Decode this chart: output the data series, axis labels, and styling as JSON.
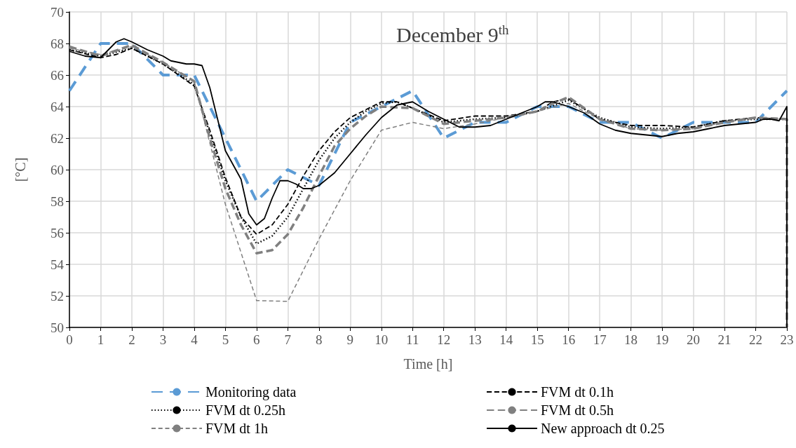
{
  "chart_data": {
    "type": "line",
    "title": "December 9$^{th}$",
    "xlabel": "Time [h]",
    "ylabel": "[°C]",
    "xlim": [
      0,
      23
    ],
    "xticks": [
      0,
      1,
      2,
      3,
      4,
      5,
      6,
      7,
      8,
      9,
      10,
      11,
      12,
      13,
      14,
      15,
      16,
      17,
      18,
      19,
      20,
      21,
      22,
      23
    ],
    "ylim": [
      50,
      70
    ],
    "yticks": [
      50,
      52,
      54,
      56,
      58,
      60,
      62,
      64,
      66,
      68,
      70
    ],
    "grid": true,
    "legend": "bottom",
    "marker": "none",
    "series": [
      {
        "name": "Monitoring data",
        "color": "#5b9bd5",
        "line_style": "dashed",
        "x": [
          0,
          1,
          2,
          3,
          4,
          5,
          6,
          7,
          8,
          9,
          10,
          11,
          12,
          13,
          14,
          15,
          16,
          17,
          18,
          19,
          20,
          21,
          22,
          23
        ],
        "values": [
          65,
          68,
          68,
          66,
          66,
          62,
          58,
          60,
          59,
          63,
          64,
          65,
          62,
          63,
          63,
          64,
          64,
          63,
          63,
          62,
          63,
          63,
          63,
          65
        ]
      },
      {
        "name": "FVM dt 0.1h",
        "color": "#000000",
        "line_style": "dashed",
        "x": [
          0,
          1,
          1.5,
          2,
          3,
          4,
          4.5,
          5,
          5.5,
          6,
          6.5,
          7,
          7.5,
          8,
          8.5,
          9,
          9.5,
          10,
          10.5,
          11,
          12,
          13,
          14,
          15,
          15.5,
          16,
          17,
          18,
          19,
          20,
          21,
          22,
          23
        ],
        "values": [
          67.6,
          67.1,
          67.3,
          67.7,
          66.7,
          65.3,
          62.5,
          59.5,
          57,
          55.9,
          56.5,
          57.8,
          59.6,
          61.2,
          62.4,
          63.3,
          63.8,
          64.3,
          64.3,
          63.9,
          63.1,
          63.4,
          63.4,
          63.7,
          64.3,
          64.5,
          63.2,
          62.8,
          62.8,
          62.7,
          63.1,
          63.3,
          63.2
        ]
      },
      {
        "name": "FVM dt 0.25h",
        "color": "#000000",
        "line_style": "dotted",
        "x": [
          0,
          1,
          2,
          3,
          4,
          4.5,
          5,
          5.5,
          6,
          6.5,
          7,
          7.5,
          8,
          8.5,
          9,
          9.5,
          10,
          10.5,
          11,
          12,
          13,
          14,
          15,
          16,
          17,
          18,
          19,
          20,
          21,
          22,
          23
        ],
        "values": [
          67.6,
          67.2,
          67.7,
          66.7,
          65.4,
          62.3,
          59.3,
          57,
          55.3,
          55.8,
          57,
          58.8,
          60.6,
          62,
          63,
          63.7,
          64.2,
          64.3,
          63.9,
          63,
          63.2,
          63.3,
          63.7,
          64.4,
          63.3,
          62.7,
          62.6,
          62.7,
          63.1,
          63.2,
          63.2
        ]
      },
      {
        "name": "FVM dt 0.5h",
        "color": "#808080",
        "line_style": "dashed",
        "x": [
          0,
          1,
          2,
          3,
          4,
          4.5,
          5,
          5.5,
          6,
          6.5,
          7,
          7.5,
          8,
          8.5,
          9,
          9.5,
          10,
          11,
          12,
          13,
          14,
          15,
          15.5,
          16,
          17,
          18,
          19,
          20,
          21,
          22,
          23,
          23
        ],
        "values": [
          67.8,
          67.2,
          67.9,
          66.8,
          65.6,
          62,
          58.8,
          56.5,
          54.7,
          54.9,
          55.9,
          57.6,
          59.6,
          61.5,
          62.6,
          63.4,
          64,
          63.9,
          62.9,
          63.1,
          63.3,
          63.7,
          64.2,
          64.6,
          63.2,
          62.6,
          62.5,
          62.6,
          63,
          63.3,
          63.2,
          50
        ]
      },
      {
        "name": "FVM dt 1h",
        "color": "#808080",
        "line_style": "dashed",
        "x": [
          0,
          1,
          2,
          3,
          4,
          5,
          6,
          7,
          8,
          9,
          10,
          11,
          12,
          13,
          14,
          15,
          16,
          17,
          18,
          19,
          20,
          21,
          22,
          23
        ],
        "values": [
          67.7,
          67.3,
          67.8,
          66.8,
          65.6,
          57.8,
          51.7,
          51.65,
          55.6,
          59.3,
          62.5,
          63,
          62.6,
          62.9,
          63.3,
          63.7,
          64.2,
          63.2,
          62.6,
          62.5,
          62.6,
          63,
          63.3,
          63.2
        ]
      },
      {
        "name": "New approach dt 0.25",
        "color": "#000000",
        "line_style": "solid",
        "x": [
          0,
          0.5,
          1,
          1.25,
          1.5,
          1.75,
          2,
          2.5,
          3,
          3.25,
          3.5,
          3.75,
          4,
          4.25,
          4.5,
          4.75,
          5,
          5.25,
          5.5,
          5.75,
          6,
          6.25,
          6.5,
          6.75,
          7,
          7.25,
          7.5,
          7.75,
          8,
          8.5,
          9,
          9.5,
          10,
          10.5,
          11,
          11.5,
          12,
          12.5,
          13,
          13.5,
          14,
          14.5,
          15,
          15.25,
          15.5,
          16,
          16.5,
          17,
          17.5,
          18,
          18.5,
          19,
          19.5,
          20,
          20.5,
          21,
          21.5,
          22,
          22.25,
          22.5,
          22.75,
          23,
          23
        ],
        "values": [
          67.5,
          67.2,
          67.1,
          67.6,
          68.1,
          68.3,
          68.1,
          67.6,
          67.2,
          66.9,
          66.8,
          66.7,
          66.7,
          66.6,
          65.2,
          63.2,
          61.2,
          60.3,
          59.4,
          57.2,
          56.5,
          56.9,
          58.2,
          59.3,
          59.3,
          59.1,
          58.8,
          58.8,
          59,
          59.8,
          61,
          62.2,
          63.3,
          64.1,
          64.3,
          63.7,
          63.2,
          62.7,
          62.7,
          62.8,
          63.2,
          63.6,
          64,
          64.3,
          64.3,
          64,
          63.6,
          62.9,
          62.5,
          62.3,
          62.2,
          62.1,
          62.3,
          62.4,
          62.6,
          62.8,
          62.9,
          63,
          63.2,
          63.2,
          63.1,
          64,
          50
        ]
      }
    ]
  }
}
